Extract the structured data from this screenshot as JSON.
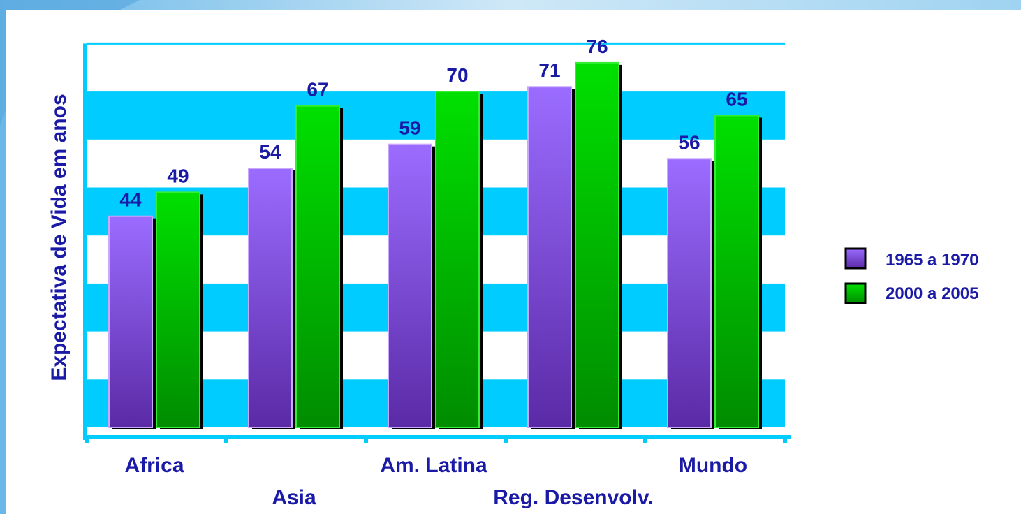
{
  "chart_data": {
    "type": "bar",
    "categories": [
      "Africa",
      "Asia",
      "Am. Latina",
      "Reg. Desenvolv.",
      "Mundo"
    ],
    "series": [
      {
        "name": "1965 a 1970",
        "values": [
          44,
          54,
          59,
          71,
          56
        ]
      },
      {
        "name": "2000 a 2005",
        "values": [
          49,
          67,
          70,
          76,
          65
        ]
      }
    ],
    "title": "",
    "xlabel": "",
    "ylabel": "Expectativa de Vida em anos",
    "ylim": [
      0,
      80
    ],
    "grid": "alternating horizontal bands",
    "legend": "right"
  },
  "colors": {
    "series_1": "#8a58e8",
    "series_2": "#00c800",
    "bands": "#00ccff",
    "text": "#1a1aa6",
    "background_frame": "#7fc4ec"
  }
}
